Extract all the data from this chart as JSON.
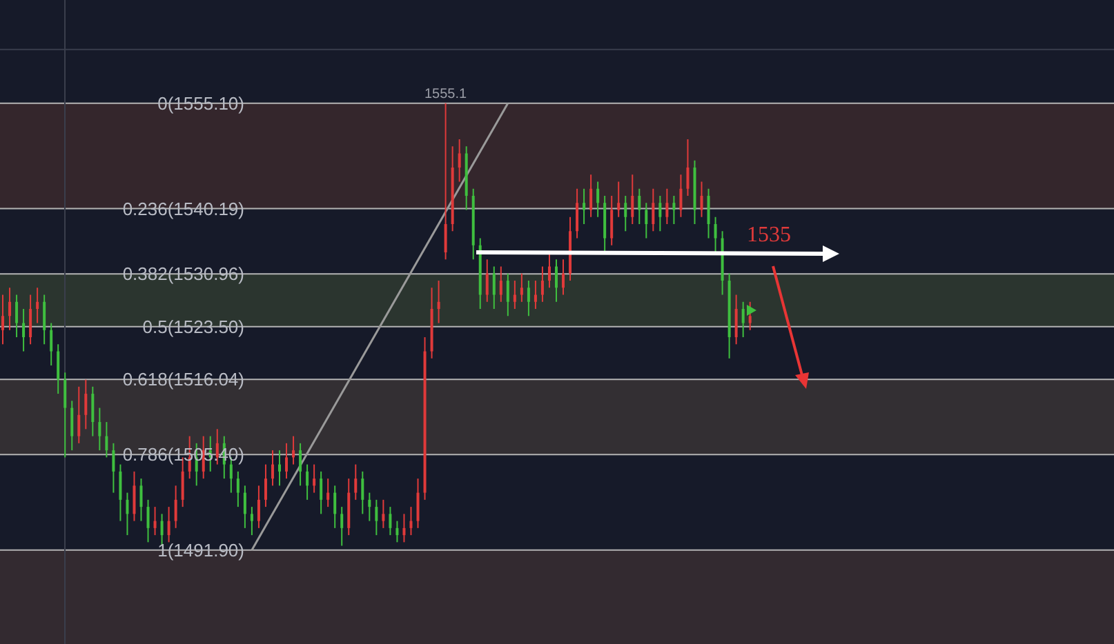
{
  "chart_data": {
    "type": "candlestick",
    "categories": [
      null,
      null,
      null,
      null,
      null,
      null,
      null,
      null,
      null,
      null,
      null,
      null,
      null,
      null,
      null,
      null,
      null,
      null,
      null,
      null,
      null,
      null,
      null,
      null,
      null,
      null,
      null,
      null,
      null,
      null,
      null,
      null,
      null,
      null,
      null,
      null,
      null,
      null,
      null,
      null,
      null,
      null,
      null,
      null,
      null,
      null,
      null,
      null,
      null,
      null,
      null,
      null,
      null,
      null,
      null,
      null,
      null,
      null,
      null,
      null,
      null,
      null,
      null,
      null,
      null,
      null,
      null,
      null,
      null,
      null,
      null,
      null,
      null,
      null,
      null,
      null,
      null,
      null,
      null,
      null,
      null,
      null,
      null,
      null,
      null,
      null,
      null,
      null,
      null,
      null,
      null,
      null,
      null,
      null,
      null,
      null,
      null,
      null,
      null,
      null,
      null,
      null,
      null,
      null,
      null,
      null,
      null,
      null,
      null,
      null,
      null,
      null,
      null,
      null,
      null,
      null,
      null,
      null,
      null,
      null,
      null,
      null,
      null,
      null,
      null,
      null,
      null,
      null,
      null,
      null,
      null,
      null,
      null,
      null,
      null,
      null,
      null,
      null,
      null,
      null,
      null,
      null,
      null,
      null,
      null,
      null,
      null,
      null,
      null,
      null,
      null,
      null,
      null,
      null,
      null,
      null,
      null,
      null,
      null,
      null,
      null
    ],
    "ohlc": [
      [
        1523,
        1528,
        1521,
        1525
      ],
      [
        1525,
        1529,
        1523,
        1527
      ],
      [
        1527,
        1528,
        1522,
        1524
      ],
      [
        1524,
        1526,
        1520,
        1522
      ],
      [
        1522,
        1528,
        1521,
        1526
      ],
      [
        1526,
        1529,
        1524,
        1527
      ],
      [
        1527,
        1528,
        1521,
        1523
      ],
      [
        1523,
        1524,
        1518,
        1520
      ],
      [
        1520,
        1521,
        1514,
        1516
      ],
      [
        1516,
        1517,
        1505,
        1512
      ],
      [
        1512,
        1513,
        1506,
        1508
      ],
      [
        1508,
        1515,
        1507,
        1511
      ],
      [
        1511,
        1516,
        1509,
        1514
      ],
      [
        1514,
        1515,
        1508,
        1510
      ],
      [
        1510,
        1512,
        1506,
        1508
      ],
      [
        1508,
        1510,
        1505,
        1506
      ],
      [
        1506,
        1507,
        1500,
        1503
      ],
      [
        1503,
        1504,
        1496,
        1499
      ],
      [
        1499,
        1500,
        1494,
        1497
      ],
      [
        1497,
        1503,
        1496,
        1501
      ],
      [
        1501,
        1502,
        1496,
        1498
      ],
      [
        1498,
        1499,
        1493,
        1495
      ],
      [
        1495,
        1498,
        1494,
        1496
      ],
      [
        1496,
        1497,
        1492.5,
        1494
      ],
      [
        1494,
        1498,
        1493,
        1496
      ],
      [
        1496,
        1501,
        1495,
        1499
      ],
      [
        1499,
        1505,
        1498,
        1503
      ],
      [
        1503,
        1508,
        1502,
        1505
      ],
      [
        1505,
        1507,
        1501,
        1503
      ],
      [
        1503,
        1508,
        1502,
        1506
      ],
      [
        1506,
        1508,
        1503,
        1505
      ],
      [
        1505,
        1509,
        1504,
        1507
      ],
      [
        1507,
        1508,
        1502,
        1504
      ],
      [
        1504,
        1505,
        1500,
        1502
      ],
      [
        1502,
        1503,
        1498,
        1500
      ],
      [
        1500,
        1501,
        1495,
        1497
      ],
      [
        1497,
        1498,
        1494,
        1496
      ],
      [
        1496,
        1501,
        1495,
        1499
      ],
      [
        1499,
        1504,
        1498,
        1502
      ],
      [
        1502,
        1506,
        1501,
        1504
      ],
      [
        1504,
        1506,
        1501,
        1503
      ],
      [
        1503,
        1507,
        1502,
        1505
      ],
      [
        1505,
        1508,
        1504,
        1506
      ],
      [
        1506,
        1507,
        1501,
        1503
      ],
      [
        1503,
        1504,
        1499,
        1501
      ],
      [
        1501,
        1504,
        1500,
        1502
      ],
      [
        1502,
        1503,
        1497,
        1499
      ],
      [
        1499,
        1502,
        1498,
        1500
      ],
      [
        1500,
        1501,
        1495,
        1497
      ],
      [
        1497,
        1498,
        1492.5,
        1495
      ],
      [
        1495,
        1502,
        1494,
        1500
      ],
      [
        1500,
        1504,
        1499,
        1502
      ],
      [
        1502,
        1503,
        1497,
        1499
      ],
      [
        1499,
        1500,
        1496,
        1498
      ],
      [
        1498,
        1499,
        1494,
        1496
      ],
      [
        1496,
        1499,
        1495,
        1497
      ],
      [
        1497,
        1498,
        1494,
        1495
      ],
      [
        1495,
        1496,
        1493,
        1494
      ],
      [
        1494,
        1497,
        1493,
        1495
      ],
      [
        1495,
        1498,
        1494,
        1496
      ],
      [
        1496,
        1502,
        1495,
        1500
      ],
      [
        1500,
        1522,
        1499,
        1520
      ],
      [
        1520,
        1529,
        1519,
        1526
      ],
      [
        1526,
        1530,
        1524,
        1527
      ],
      [
        1534,
        1555.1,
        1533,
        1538
      ],
      [
        1538,
        1549,
        1537,
        1546
      ],
      [
        1546,
        1550,
        1544,
        1548
      ],
      [
        1548,
        1549,
        1540,
        1542
      ],
      [
        1542,
        1543,
        1533,
        1535
      ],
      [
        1535,
        1536,
        1526,
        1528
      ],
      [
        1528,
        1533,
        1527,
        1531
      ],
      [
        1531,
        1532,
        1526,
        1528
      ],
      [
        1528,
        1532,
        1527,
        1530
      ],
      [
        1530,
        1531,
        1525,
        1527
      ],
      [
        1527,
        1530,
        1526,
        1528
      ],
      [
        1528,
        1531,
        1527,
        1529
      ],
      [
        1529,
        1530,
        1525,
        1527
      ],
      [
        1527,
        1530,
        1526,
        1528
      ],
      [
        1528,
        1532,
        1527,
        1530
      ],
      [
        1530,
        1534,
        1529,
        1532
      ],
      [
        1532,
        1533,
        1527,
        1529
      ],
      [
        1529,
        1533,
        1528,
        1531
      ],
      [
        1531,
        1539,
        1530,
        1537
      ],
      [
        1537,
        1543,
        1536,
        1541
      ],
      [
        1541,
        1543,
        1538,
        1540
      ],
      [
        1540,
        1545,
        1539,
        1543
      ],
      [
        1543,
        1544,
        1539,
        1541
      ],
      [
        1541,
        1542,
        1534,
        1536
      ],
      [
        1536,
        1542,
        1535,
        1540
      ],
      [
        1540,
        1544,
        1539,
        1541
      ],
      [
        1541,
        1542,
        1537,
        1539
      ],
      [
        1539,
        1545,
        1538,
        1542
      ],
      [
        1542,
        1543,
        1538,
        1540
      ],
      [
        1540,
        1541,
        1536,
        1538
      ],
      [
        1538,
        1543,
        1537,
        1541
      ],
      [
        1541,
        1542,
        1537,
        1539
      ],
      [
        1539,
        1543,
        1538,
        1541
      ],
      [
        1541,
        1542,
        1538,
        1540
      ],
      [
        1540,
        1545,
        1539,
        1543
      ],
      [
        1543,
        1550,
        1542,
        1546
      ],
      [
        1546,
        1547,
        1538,
        1540
      ],
      [
        1540,
        1544,
        1539,
        1542
      ],
      [
        1542,
        1543,
        1536,
        1538
      ],
      [
        1538,
        1539,
        1534,
        1536
      ],
      [
        1536,
        1537,
        1528,
        1530
      ],
      [
        1530,
        1531,
        1519,
        1522
      ],
      [
        1522,
        1528,
        1521,
        1526
      ],
      [
        1526,
        1527,
        1522,
        1524
      ],
      [
        1524,
        1527,
        1523,
        1525
      ],
      null,
      null,
      null,
      null,
      null,
      null,
      null,
      null,
      null,
      null,
      null,
      null,
      null,
      null,
      null,
      null,
      null,
      null,
      null,
      null,
      null,
      null,
      null,
      null,
      null,
      null,
      null,
      null,
      null,
      null,
      null,
      null,
      null,
      null,
      null,
      null,
      null,
      null,
      null,
      null,
      null,
      null,
      null,
      null,
      null,
      null,
      null,
      null,
      null,
      null,
      null,
      null
    ],
    "colors": [
      "#e03a3a",
      "#e03a3a",
      "#3fbf3f",
      "#3fbf3f",
      "#e03a3a",
      "#e03a3a",
      "#3fbf3f",
      "#3fbf3f",
      "#3fbf3f",
      "#3fbf3f",
      "#3fbf3f",
      "#e03a3a",
      "#e03a3a",
      "#3fbf3f",
      "#3fbf3f",
      "#3fbf3f",
      "#3fbf3f",
      "#3fbf3f",
      "#3fbf3f",
      "#e03a3a",
      "#3fbf3f",
      "#3fbf3f",
      "#e03a3a",
      "#3fbf3f",
      "#e03a3a",
      "#e03a3a",
      "#e03a3a",
      "#e03a3a",
      "#3fbf3f",
      "#e03a3a",
      "#3fbf3f",
      "#e03a3a",
      "#3fbf3f",
      "#3fbf3f",
      "#3fbf3f",
      "#3fbf3f",
      "#3fbf3f",
      "#e03a3a",
      "#e03a3a",
      "#e03a3a",
      "#3fbf3f",
      "#e03a3a",
      "#e03a3a",
      "#3fbf3f",
      "#3fbf3f",
      "#e03a3a",
      "#3fbf3f",
      "#e03a3a",
      "#3fbf3f",
      "#3fbf3f",
      "#e03a3a",
      "#e03a3a",
      "#3fbf3f",
      "#3fbf3f",
      "#3fbf3f",
      "#e03a3a",
      "#3fbf3f",
      "#3fbf3f",
      "#e03a3a",
      "#e03a3a",
      "#e03a3a",
      "#e03a3a",
      "#e03a3a",
      "#e03a3a",
      "#e03a3a",
      "#e03a3a",
      "#e03a3a",
      "#3fbf3f",
      "#3fbf3f",
      "#3fbf3f",
      "#e03a3a",
      "#3fbf3f",
      "#e03a3a",
      "#3fbf3f",
      "#e03a3a",
      "#e03a3a",
      "#3fbf3f",
      "#e03a3a",
      "#e03a3a",
      "#e03a3a",
      "#3fbf3f",
      "#e03a3a",
      "#e03a3a",
      "#e03a3a",
      "#3fbf3f",
      "#e03a3a",
      "#3fbf3f",
      "#3fbf3f",
      "#e03a3a",
      "#e03a3a",
      "#3fbf3f",
      "#e03a3a",
      "#3fbf3f",
      "#3fbf3f",
      "#e03a3a",
      "#3fbf3f",
      "#e03a3a",
      "#3fbf3f",
      "#e03a3a",
      "#e03a3a",
      "#3fbf3f",
      "#e03a3a",
      "#3fbf3f",
      "#3fbf3f",
      "#3fbf3f",
      "#3fbf3f",
      "#e03a3a",
      "#3fbf3f",
      "#e03a3a",
      null,
      null,
      null,
      null,
      null,
      null,
      null,
      null,
      null,
      null,
      null,
      null,
      null,
      null,
      null,
      null,
      null,
      null,
      null,
      null,
      null,
      null,
      null,
      null,
      null,
      null,
      null,
      null,
      null,
      null,
      null,
      null,
      null,
      null,
      null,
      null,
      null,
      null,
      null,
      null,
      null,
      null,
      null,
      null,
      null,
      null,
      null,
      null,
      null,
      null,
      null,
      null
    ],
    "series": [
      {
        "type": "line",
        "color": "#9a9a9a",
        "values": [
          null,
          null,
          null,
          null,
          null,
          null,
          null,
          null,
          null,
          null,
          null,
          null,
          null,
          null,
          null,
          null,
          null,
          null,
          null,
          null,
          null,
          null,
          null,
          null,
          null,
          null,
          null,
          null,
          null,
          null,
          null,
          null,
          null,
          null,
          null,
          null,
          1491.9,
          null,
          null,
          null,
          null,
          null,
          null,
          null,
          null,
          null,
          null,
          null,
          null,
          null,
          null,
          null,
          null,
          null,
          null,
          null,
          null,
          null,
          null,
          null,
          null,
          null,
          null,
          null,
          null,
          null,
          null,
          null,
          null,
          null,
          null,
          null,
          null,
          1555.1,
          null,
          null,
          null,
          null,
          null,
          null,
          null,
          null,
          null,
          null,
          null,
          null,
          null,
          null,
          null,
          null,
          null,
          null,
          null,
          null,
          null,
          null,
          null,
          null,
          null,
          null,
          null,
          null,
          null,
          null,
          null,
          null,
          null,
          null,
          null,
          null,
          null,
          null,
          null,
          null,
          null,
          null,
          null,
          null,
          null,
          null,
          null,
          null,
          null,
          null,
          null,
          null,
          null,
          null,
          null,
          null,
          null,
          null,
          null,
          null,
          null,
          null,
          null,
          null,
          null,
          null,
          null,
          null,
          null,
          null,
          null,
          null,
          null,
          null,
          null,
          null,
          null,
          null,
          null,
          null,
          null,
          null,
          null,
          null,
          null,
          null,
          null
        ]
      }
    ],
    "ylim": [
      1478.6,
      1569.7
    ],
    "ref_lines": [
      {
        "axis": "y",
        "value": 1562.7,
        "color": "#3a3e4c"
      },
      {
        "axis": "y",
        "value": 1555.1,
        "label": "0(1555.10)",
        "color": "#b4b4b4"
      },
      {
        "axis": "y",
        "value": 1540.19,
        "label": "0.236(1540.19)",
        "color": "#b4b4b4"
      },
      {
        "axis": "y",
        "value": 1530.96,
        "label": "0.382(1530.96)",
        "color": "#b4b4b4"
      },
      {
        "axis": "y",
        "value": 1523.5,
        "label": "0.5(1523.50)",
        "color": "#b4b4b4"
      },
      {
        "axis": "y",
        "value": 1516.04,
        "label": "0.618(1516.04)",
        "color": "#b4b4b4"
      },
      {
        "axis": "y",
        "value": 1505.4,
        "label": "0.786(1505.40)",
        "color": "#b4b4b4"
      },
      {
        "axis": "y",
        "value": 1491.9,
        "label": "1(1491.90)",
        "color": "#b4b4b4"
      }
    ],
    "bands": [
      {
        "axis": "y",
        "from": 1540.19,
        "to": 1555.1,
        "color": "#34262c"
      },
      {
        "axis": "y",
        "from": 1523.5,
        "to": 1530.96,
        "color": "#2b352f"
      },
      {
        "axis": "y",
        "from": 1505.4,
        "to": 1516.04,
        "color": "#332f33"
      },
      {
        "axis": "y",
        "from": 1478.6,
        "to": 1491.9,
        "color": "#332a30"
      }
    ],
    "annotations": [
      {
        "text": "1555.1",
        "y": 1555.1
      },
      "1535"
    ]
  }
}
